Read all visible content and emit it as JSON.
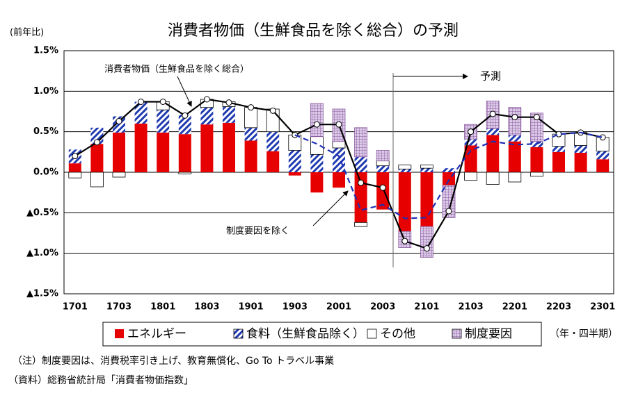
{
  "chart_data": {
    "type": "stacked_bar_line",
    "title": "消費者物価（生鮮食品を除く総合）の予測",
    "y_label": "(前年比)",
    "x_label": "（年・四半期）",
    "forecast_label": "予測",
    "notes": [
      "（注）制度要因は、消費税率引き上げ、教育無償化、Go To トラベル事業",
      "（資料）総務省統計局「消費者物価指数」"
    ],
    "categories": [
      "1701",
      null,
      "1703",
      null,
      "1801",
      null,
      "1803",
      null,
      "1901",
      null,
      "1903",
      null,
      "2001",
      null,
      "2003",
      null,
      "2101",
      null,
      "2103",
      null,
      "2201",
      null,
      "2203",
      null,
      "2301"
    ],
    "ylim": [
      -1.5,
      1.5
    ],
    "yticks": [
      {
        "value": 1.5,
        "label": "1.5%"
      },
      {
        "value": 1.0,
        "label": "1.0%"
      },
      {
        "value": 0.5,
        "label": "0.5%"
      },
      {
        "value": 0,
        "label": "0.0%"
      },
      {
        "value": -0.5,
        "label": "▲0.5%"
      },
      {
        "value": -1.0,
        "label": "▲1.0%"
      },
      {
        "value": -1.5,
        "label": "▲1.5%"
      }
    ],
    "grid": true,
    "series": [
      {
        "name": "エネルギー",
        "color": "#e60000",
        "values": [
          0.11,
          0.35,
          0.49,
          0.6,
          0.49,
          0.47,
          0.59,
          0.61,
          0.39,
          0.26,
          -0.04,
          -0.25,
          -0.19,
          -0.62,
          -0.46,
          -0.73,
          -0.67,
          -0.16,
          0.33,
          0.46,
          0.38,
          0.31,
          0.25,
          0.24,
          0.16
        ]
      },
      {
        "name": "食料（生鮮食品除く）",
        "color": "#1f3ab0",
        "values": [
          0.17,
          0.2,
          0.2,
          0.27,
          0.28,
          0.24,
          0.21,
          0.2,
          0.16,
          0.24,
          0.27,
          0.22,
          0.3,
          0.19,
          0.08,
          0.04,
          0.05,
          0.05,
          0.08,
          0.08,
          0.08,
          0.07,
          0.07,
          0.09,
          0.1
        ]
      },
      {
        "name": "その他",
        "color": "#ffffff",
        "values": [
          -0.07,
          -0.18,
          -0.06,
          0,
          0.1,
          -0.02,
          0.1,
          0.06,
          0.25,
          0.28,
          0.19,
          0.22,
          0.08,
          -0.05,
          0.06,
          0.05,
          0.04,
          0,
          -0.1,
          -0.15,
          -0.12,
          -0.05,
          0.15,
          0.16,
          0.17
        ]
      },
      {
        "name": "制度要因",
        "color": "#d9c6e6",
        "values": [
          0,
          0,
          0,
          0,
          0,
          0,
          0,
          0,
          0,
          0,
          0,
          0.41,
          0.4,
          0.36,
          0.13,
          -0.2,
          -0.38,
          -0.4,
          0.18,
          0.34,
          0.34,
          0.35,
          0,
          0,
          0
        ]
      }
    ],
    "line_series": [
      {
        "name": "消費者物価（生鮮食品を除く総合）",
        "color": "#000000",
        "style": "solid",
        "markers": true,
        "values": [
          0.2,
          0.37,
          0.63,
          0.87,
          0.87,
          0.7,
          0.9,
          0.86,
          0.8,
          0.76,
          0.46,
          0.59,
          0.59,
          -0.13,
          -0.19,
          -0.85,
          -0.94,
          -0.48,
          0.5,
          0.72,
          0.68,
          0.68,
          0.47,
          0.49,
          0.43
        ]
      },
      {
        "name": "制度要因を除く",
        "color": "#1f2fb5",
        "style": "dashed",
        "markers": false,
        "values": [
          null,
          null,
          null,
          null,
          null,
          null,
          null,
          null,
          null,
          null,
          0.46,
          0.35,
          0.2,
          -0.47,
          -0.4,
          -0.57,
          -0.56,
          -0.1,
          0.27,
          0.38,
          0.34,
          0.35,
          0.47,
          0.49,
          0.43
        ]
      }
    ]
  }
}
